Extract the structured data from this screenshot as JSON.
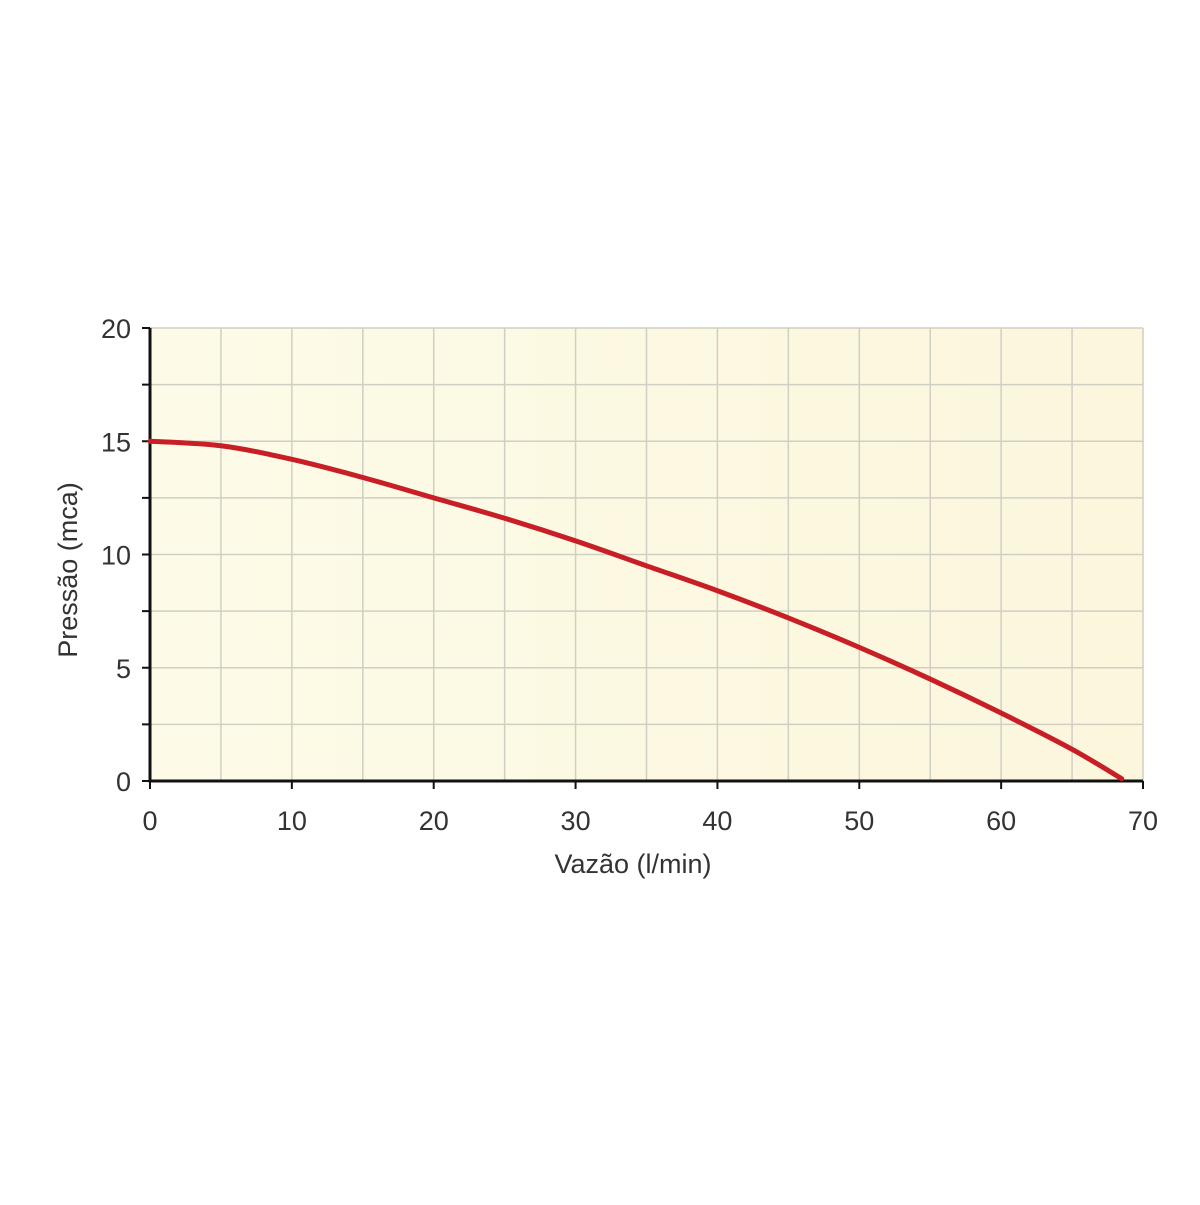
{
  "chart_data": {
    "type": "line",
    "title": "",
    "xlabel": "Vazão (l/min)",
    "ylabel": "Pressão (mca)",
    "xlim": [
      0,
      70
    ],
    "ylim": [
      0,
      20
    ],
    "xticks": [
      "0",
      "10",
      "20",
      "30",
      "40",
      "50",
      "60",
      "70"
    ],
    "yticks": [
      "0",
      "5",
      "10",
      "15",
      "20"
    ],
    "grid": true,
    "grid_x_step": 5,
    "grid_y_step": 2.5,
    "series": [
      {
        "color": "#c81e26",
        "x": [
          0,
          5,
          10,
          15,
          20,
          25,
          30,
          35,
          40,
          45,
          50,
          55,
          60,
          65,
          68.5
        ],
        "y": [
          15,
          14.8,
          14.2,
          13.4,
          12.5,
          11.6,
          10.6,
          9.5,
          8.4,
          7.2,
          5.9,
          4.5,
          3.0,
          1.4,
          0.1
        ]
      }
    ],
    "colors": {
      "background": "#fcf9e3",
      "grid": "#cfcfc4",
      "axis": "#111111",
      "line": "#c81e26"
    }
  }
}
